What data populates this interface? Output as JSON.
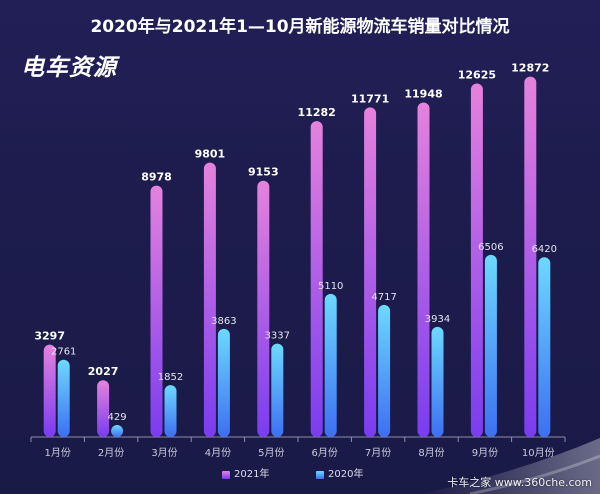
{
  "logo": {
    "text": "电车资源"
  },
  "watermark": {
    "text": "卡车之家 www.360che.com"
  },
  "theme": {
    "axis_color": "#8e8eae",
    "category_label_color": "#c9c9dc",
    "value_label_color_primary": "#ffffff",
    "value_label_color_secondary": "#e4e4f2"
  },
  "chart_data": {
    "type": "bar",
    "title": "2020年与2021年1—10月新能源物流车销量对比情况",
    "xlabel": "",
    "ylabel": "",
    "categories": [
      "1月份",
      "2月份",
      "3月份",
      "4月份",
      "5月份",
      "6月份",
      "7月份",
      "8月份",
      "9月份",
      "10月份"
    ],
    "series": [
      {
        "name": "2021年",
        "values": [
          3297,
          2027,
          8978,
          9801,
          9153,
          11282,
          11771,
          11948,
          12625,
          12872
        ],
        "color_top": "#e582dc",
        "color_bottom": "#7a3cf0"
      },
      {
        "name": "2020年",
        "values": [
          2761,
          429,
          1852,
          3863,
          3337,
          5110,
          4717,
          3934,
          6506,
          6420
        ],
        "color_top": "#6cd9ff",
        "color_bottom": "#3d6ff2"
      }
    ],
    "ylim": [
      0,
      13000
    ],
    "y_axis_shown": false,
    "grid": false,
    "data_labels": true,
    "legend": {
      "position": "bottom"
    }
  }
}
